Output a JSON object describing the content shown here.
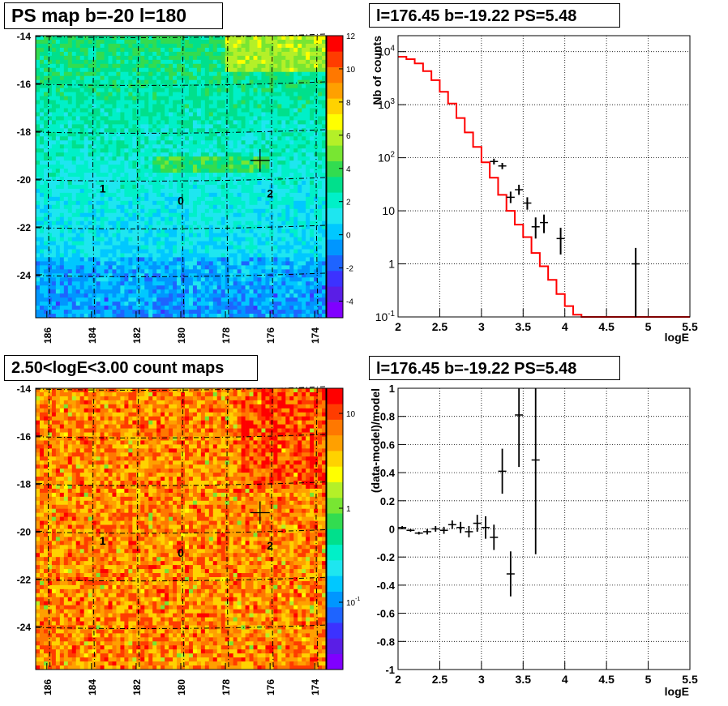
{
  "panels": {
    "tl": {
      "title": "PS map b=-20 l=180"
    },
    "tr": {
      "title": "l=176.45 b=-19.22 PS=5.48"
    },
    "bl": {
      "title": "2.50<logE<3.00 count maps"
    },
    "br": {
      "title": "l=176.45 b=-19.22 PS=5.48"
    }
  },
  "chart_data": [
    {
      "type": "heatmap",
      "title": "PS map b=-20 l=180",
      "x_ticks": [
        "186",
        "184",
        "182",
        "180",
        "178",
        "176",
        "174"
      ],
      "y_ticks": [
        "-14",
        "-16",
        "-18",
        "-20",
        "-22",
        "-24"
      ],
      "xlim": [
        186.5,
        173.5
      ],
      "ylim": [
        -25.8,
        -14
      ],
      "colorbar_ticks": [
        "12",
        "10",
        "8",
        "6",
        "4",
        "2",
        "0",
        "-2",
        "-4"
      ],
      "colorbar_range": [
        -5,
        12
      ],
      "source_labels": [
        {
          "text": "1",
          "l": 183.5,
          "b": -20.4
        },
        {
          "text": "0",
          "l": 180.0,
          "b": -20.9
        },
        {
          "text": "2",
          "l": 176.0,
          "b": -20.6
        }
      ],
      "marker": {
        "l": 176.45,
        "b": -19.22
      },
      "colors": [
        "#8000ff",
        "#5a1ee6",
        "#3c32ff",
        "#1e64ff",
        "#0096ff",
        "#00c8ff",
        "#1ee6f0",
        "#00f0c8",
        "#00e08c",
        "#32dc50",
        "#78e632",
        "#b4f028",
        "#ffff00",
        "#ffd200",
        "#ffa000",
        "#ff7800",
        "#ff3c00",
        "#ff0000"
      ]
    },
    {
      "type": "line",
      "title": "l=176.45 b=-19.22 PS=5.48",
      "xlabel": "logE",
      "ylabel": "Nb of counts",
      "xlim": [
        2,
        5.5
      ],
      "ylim": [
        0.1,
        20000
      ],
      "ylog": true,
      "x_ticks": [
        "2",
        "2.5",
        "3",
        "3.5",
        "4",
        "4.5",
        "5",
        "5.5"
      ],
      "y_ticks": [
        "10^4",
        "10^3",
        "10^2",
        "10",
        "1",
        "10^-1"
      ],
      "grid": true,
      "model_color": "#ff0000",
      "model": {
        "edges": [
          2,
          2.1,
          2.2,
          2.3,
          2.4,
          2.5,
          2.6,
          2.7,
          2.8,
          2.9,
          3.0,
          3.1,
          3.2,
          3.3,
          3.4,
          3.5,
          3.6,
          3.7,
          3.8,
          3.9,
          4.0,
          4.1,
          4.2,
          4.3,
          5.5
        ],
        "values": [
          8000,
          7200,
          6000,
          4300,
          2900,
          1750,
          1050,
          560,
          300,
          160,
          82,
          42,
          20,
          10,
          5.5,
          3.2,
          1.6,
          0.9,
          0.5,
          0.27,
          0.16,
          0.11,
          0.1,
          0.1
        ]
      },
      "data_points": [
        {
          "x": 3.15,
          "y": 85,
          "lo": 75,
          "hi": 96
        },
        {
          "x": 3.25,
          "y": 70,
          "lo": 61,
          "hi": 80
        },
        {
          "x": 3.35,
          "y": 18,
          "lo": 14,
          "hi": 23
        },
        {
          "x": 3.45,
          "y": 25,
          "lo": 20,
          "hi": 31
        },
        {
          "x": 3.55,
          "y": 14,
          "lo": 10.5,
          "hi": 18
        },
        {
          "x": 3.65,
          "y": 5,
          "lo": 3,
          "hi": 7.5
        },
        {
          "x": 3.75,
          "y": 6,
          "lo": 3.8,
          "hi": 8.5
        },
        {
          "x": 3.95,
          "y": 3,
          "lo": 1.5,
          "hi": 4.8
        },
        {
          "x": 4.85,
          "y": 1,
          "lo": 0.1,
          "hi": 2
        }
      ]
    },
    {
      "type": "heatmap",
      "title": "2.50<logE<3.00 count maps",
      "x_ticks": [
        "186",
        "184",
        "182",
        "180",
        "178",
        "176",
        "174"
      ],
      "y_ticks": [
        "-14",
        "-16",
        "-18",
        "-20",
        "-22",
        "-24"
      ],
      "xlim": [
        186.5,
        173.5
      ],
      "ylim": [
        -25.8,
        -14
      ],
      "colorbar_ticks": [
        "10",
        "1",
        "10^-1"
      ],
      "colorbar_log": true,
      "source_labels": [
        {
          "text": "1",
          "l": 183.5,
          "b": -20.4
        },
        {
          "text": "0",
          "l": 180.0,
          "b": -20.9
        },
        {
          "text": "2",
          "l": 176.0,
          "b": -20.6
        }
      ],
      "marker": {
        "l": 176.45,
        "b": -19.22
      },
      "colors": [
        "#8000ff",
        "#5a1ee6",
        "#3c32ff",
        "#1e64ff",
        "#0096ff",
        "#00c8ff",
        "#1ee6f0",
        "#00f0c8",
        "#00e08c",
        "#32dc50",
        "#78e632",
        "#b4f028",
        "#ffff00",
        "#ffd200",
        "#ffa000",
        "#ff7800",
        "#ff3c00",
        "#ff0000"
      ]
    },
    {
      "type": "scatter",
      "title": "l=176.45 b=-19.22 PS=5.48",
      "xlabel": "logE",
      "ylabel": "(data-model)/model",
      "xlim": [
        2,
        5.5
      ],
      "ylim": [
        -1,
        1
      ],
      "x_ticks": [
        "2",
        "2.5",
        "3",
        "3.5",
        "4",
        "4.5",
        "5",
        "5.5"
      ],
      "y_ticks": [
        "1",
        "0.8",
        "0.6",
        "0.4",
        "0.2",
        "0",
        "-0.2",
        "-0.4",
        "-0.6",
        "-0.8",
        "-1"
      ],
      "grid": true,
      "points": [
        {
          "x": 2.05,
          "y": 0.01,
          "e": 0.01
        },
        {
          "x": 2.15,
          "y": -0.01,
          "e": 0.01
        },
        {
          "x": 2.25,
          "y": -0.03,
          "e": 0.01
        },
        {
          "x": 2.35,
          "y": -0.02,
          "e": 0.02
        },
        {
          "x": 2.45,
          "y": 0.0,
          "e": 0.02
        },
        {
          "x": 2.55,
          "y": -0.01,
          "e": 0.025
        },
        {
          "x": 2.65,
          "y": 0.03,
          "e": 0.03
        },
        {
          "x": 2.75,
          "y": 0.01,
          "e": 0.04
        },
        {
          "x": 2.85,
          "y": -0.02,
          "e": 0.04
        },
        {
          "x": 2.95,
          "y": 0.04,
          "e": 0.06
        },
        {
          "x": 3.05,
          "y": 0.01,
          "e": 0.08
        },
        {
          "x": 3.15,
          "y": -0.06,
          "e": 0.09
        },
        {
          "x": 3.25,
          "y": 0.41,
          "e": 0.16
        },
        {
          "x": 3.35,
          "y": -0.32,
          "e": 0.16
        },
        {
          "x": 3.45,
          "y": 0.81,
          "e": 0.37
        },
        {
          "x": 3.65,
          "y": 0.49,
          "e": 0.67
        }
      ]
    }
  ]
}
